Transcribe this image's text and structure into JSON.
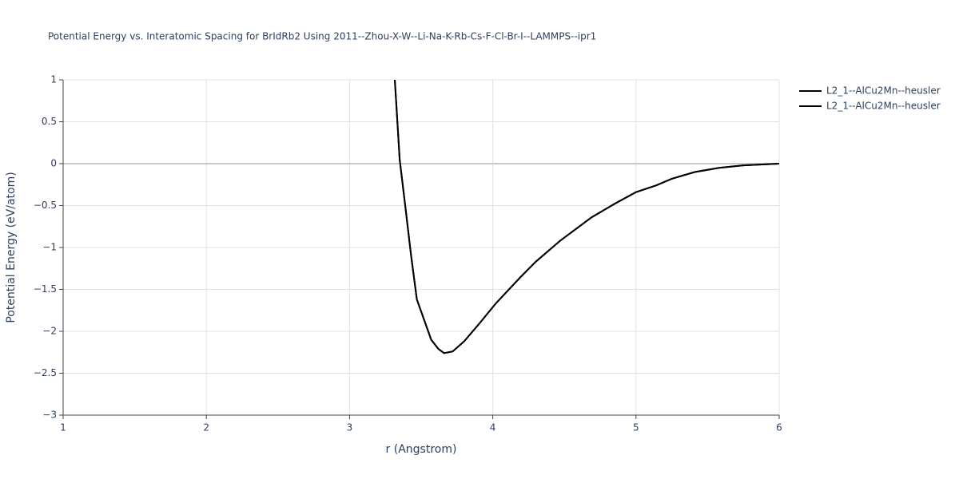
{
  "chart_data": {
    "type": "line",
    "title": "Potential Energy vs. Interatomic Spacing for BrIdRb2 Using 2011--Zhou-X-W--Li-Na-K-Rb-Cs-F-Cl-Br-I--LAMMPS--ipr1",
    "x_label": "r (Angstrom)",
    "y_label": "Potential Energy (eV/atom)",
    "xlim": [
      1,
      6
    ],
    "ylim": [
      -3,
      1
    ],
    "xticks": [
      1,
      2,
      3,
      4,
      5,
      6
    ],
    "yticks": [
      1,
      0.5,
      0,
      {
        "value": -0.5,
        "label": "−0.5"
      },
      {
        "value": -1,
        "label": "−1"
      },
      {
        "value": -1.5,
        "label": "−1.5"
      },
      {
        "value": -2,
        "label": "−2"
      },
      {
        "value": -2.5,
        "label": "−2.5"
      },
      {
        "value": -3,
        "label": "−3"
      }
    ],
    "grid": true,
    "legend": "right",
    "series": [
      {
        "name": "L2_1--AlCu2Mn--heusler",
        "color": "#000000",
        "x": [
          3.316,
          3.35,
          3.39,
          3.43,
          3.47,
          3.52,
          3.57,
          3.62,
          3.66,
          3.72,
          3.8,
          3.91,
          4.02,
          4.19,
          4.3,
          4.47,
          4.58,
          4.69,
          4.86,
          5.0,
          5.14,
          5.25,
          5.41,
          5.58,
          5.75,
          6.0
        ],
        "values": [
          1.0,
          0.05,
          -0.52,
          -1.1,
          -1.62,
          -1.86,
          -2.1,
          -2.21,
          -2.26,
          -2.24,
          -2.12,
          -1.9,
          -1.67,
          -1.36,
          -1.17,
          -0.92,
          -0.78,
          -0.64,
          -0.47,
          -0.34,
          -0.26,
          -0.18,
          -0.1,
          -0.05,
          -0.02,
          0.0
        ]
      },
      {
        "name": "L2_1--AlCu2Mn--heusler",
        "color": "#000000",
        "x": [
          3.316,
          3.35,
          3.39,
          3.43,
          3.47,
          3.52,
          3.57,
          3.62,
          3.66,
          3.72,
          3.8,
          3.91,
          4.02,
          4.19,
          4.3,
          4.47,
          4.58,
          4.69,
          4.86,
          5.0,
          5.14,
          5.25,
          5.41,
          5.58,
          5.75,
          6.0
        ],
        "values": [
          1.0,
          0.05,
          -0.52,
          -1.1,
          -1.62,
          -1.86,
          -2.1,
          -2.21,
          -2.26,
          -2.24,
          -2.12,
          -1.9,
          -1.67,
          -1.36,
          -1.17,
          -0.92,
          -0.78,
          -0.64,
          -0.47,
          -0.34,
          -0.26,
          -0.18,
          -0.1,
          -0.05,
          -0.02,
          0.0
        ]
      }
    ]
  }
}
